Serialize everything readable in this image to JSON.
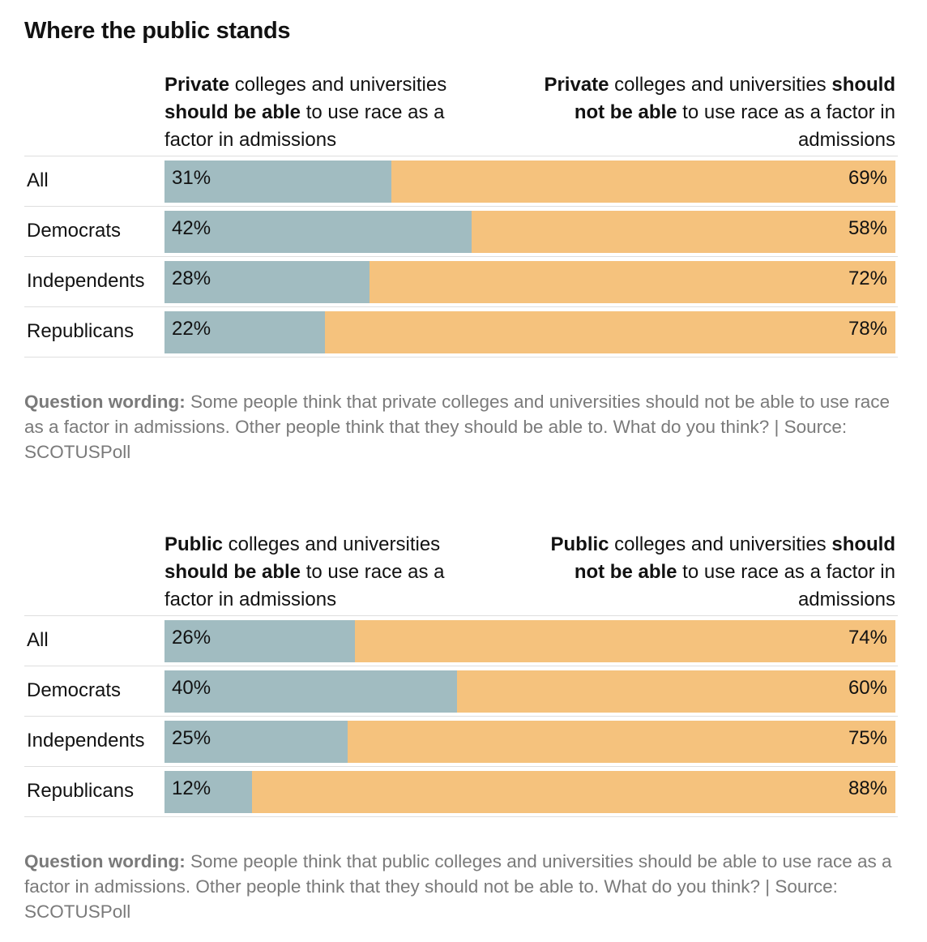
{
  "title": "Where the public stands",
  "chart_data": [
    {
      "type": "bar",
      "orientation": "horizontal",
      "stacked": true,
      "percent_stacked": true,
      "header_left": {
        "bold": "Private",
        "text1": " colleges and universities ",
        "bold2": "should be able",
        "text2": " to use race as a factor in admissions"
      },
      "header_right": {
        "bold": "Private",
        "text1": " colleges and universities ",
        "bold2": "should not be able",
        "text2": " to use race as a factor in admissions"
      },
      "categories": [
        "All",
        "Democrats",
        "Independents",
        "Republicans"
      ],
      "series": [
        {
          "name": "should be able",
          "values": [
            31,
            42,
            28,
            22
          ],
          "labels": [
            "31%",
            "42%",
            "28%",
            "22%"
          ],
          "color": "#a1bcc1"
        },
        {
          "name": "should not be able",
          "values": [
            69,
            58,
            72,
            78
          ],
          "labels": [
            "69%",
            "58%",
            "72%",
            "78%"
          ],
          "color": "#f5c27d"
        }
      ],
      "xlim": [
        0,
        100
      ],
      "note_label": "Question wording:",
      "note_text": " Some people think that private colleges and universities should not be able to use race as a factor in admissions. Other people think that they should be able to. What do you think? | Source: SCOTUSPoll"
    },
    {
      "type": "bar",
      "orientation": "horizontal",
      "stacked": true,
      "percent_stacked": true,
      "header_left": {
        "bold": "Public",
        "text1": " colleges and universities ",
        "bold2": "should be able",
        "text2": " to use race as a factor in admissions"
      },
      "header_right": {
        "bold": "Public",
        "text1": " colleges and universities ",
        "bold2": "should not be able",
        "text2": " to use race as a factor in admissions"
      },
      "categories": [
        "All",
        "Democrats",
        "Independents",
        "Republicans"
      ],
      "series": [
        {
          "name": "should be able",
          "values": [
            26,
            40,
            25,
            12
          ],
          "labels": [
            "26%",
            "40%",
            "25%",
            "12%"
          ],
          "color": "#a1bcc1"
        },
        {
          "name": "should not be able",
          "values": [
            74,
            60,
            75,
            88
          ],
          "labels": [
            "74%",
            "60%",
            "75%",
            "88%"
          ],
          "color": "#f5c27d"
        }
      ],
      "xlim": [
        0,
        100
      ],
      "note_label": "Question wording:",
      "note_text": " Some people think that public colleges and universities should be able to use race as a factor in admissions. Other people think that they should not be able to. What do you think? | Source: SCOTUSPoll"
    }
  ]
}
